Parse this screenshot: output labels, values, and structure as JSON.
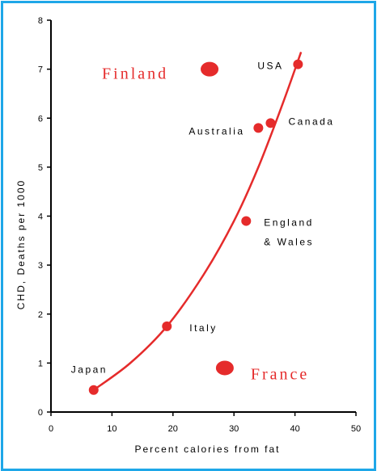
{
  "chart_data": {
    "type": "scatter",
    "title": "",
    "xlabel": "Percent calories from fat",
    "ylabel": "CHD, Deaths per 1000",
    "xlim": [
      0,
      50
    ],
    "ylim": [
      0,
      8
    ],
    "xticks": [
      "0",
      "10",
      "20",
      "30",
      "40",
      "50"
    ],
    "yticks": [
      "0",
      "1",
      "2",
      "3",
      "4",
      "5",
      "6",
      "7",
      "8"
    ],
    "grid": false,
    "points": [
      {
        "label": "Japan",
        "x": 7,
        "y": 0.45,
        "highlight": false
      },
      {
        "label": "Italy",
        "x": 19,
        "y": 1.75,
        "highlight": false
      },
      {
        "label": "England",
        "label2": "& Wales",
        "x": 32,
        "y": 3.9,
        "highlight": false
      },
      {
        "label": "Australia",
        "x": 34,
        "y": 5.8,
        "highlight": false
      },
      {
        "label": "Canada",
        "x": 36,
        "y": 5.9,
        "highlight": false
      },
      {
        "label": "USA",
        "x": 40.5,
        "y": 7.1,
        "highlight": false
      },
      {
        "label": "Finland",
        "x": 26,
        "y": 7.0,
        "highlight": true
      },
      {
        "label": "France",
        "x": 28.5,
        "y": 0.9,
        "highlight": true
      }
    ],
    "trend_curve": {
      "x": [
        7,
        13,
        19,
        25,
        30,
        34,
        38,
        41
      ],
      "y": [
        0.45,
        1.0,
        1.75,
        2.8,
        3.9,
        5.0,
        6.3,
        7.35
      ]
    },
    "colors": {
      "points": "#e52b2b",
      "curve": "#e52b2b",
      "frame": "#1ea7e8"
    }
  }
}
